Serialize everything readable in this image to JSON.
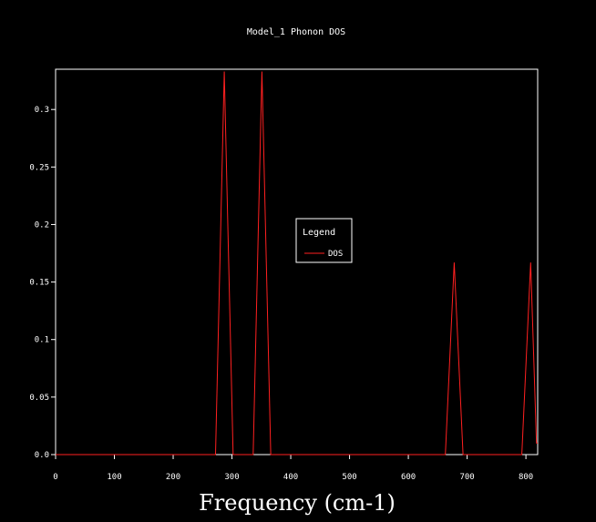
{
  "chart_data": {
    "type": "line",
    "title": "Model_1 Phonon DOS",
    "xlabel": "Frequency (cm-1)",
    "ylabel": "",
    "xlim": [
      0,
      820
    ],
    "ylim": [
      0,
      0.335
    ],
    "x_ticks": [
      0,
      100,
      200,
      300,
      400,
      500,
      600,
      700,
      800
    ],
    "y_ticks": [
      0.0,
      0.05,
      0.1,
      0.15,
      0.2,
      0.25,
      0.3
    ],
    "y_tick_labels": [
      "0.0",
      "0.05",
      "0.1",
      "0.15",
      "0.2",
      "0.25",
      "0.3"
    ],
    "grid": false,
    "legend": {
      "title": "Legend",
      "placement": "center"
    },
    "series": [
      {
        "name": "DOS",
        "color": "#ff2020",
        "x": [
          0,
          272,
          287,
          302,
          336,
          351,
          366,
          663,
          678,
          693,
          793,
          808,
          818,
          820
        ],
        "y": [
          0,
          0,
          0.333,
          0,
          0,
          0.333,
          0,
          0,
          0.167,
          0,
          0,
          0.167,
          0.01,
          0.01
        ]
      }
    ]
  }
}
